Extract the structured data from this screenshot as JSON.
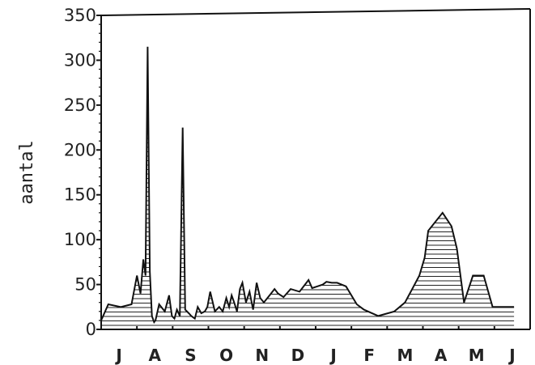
{
  "chart_data": {
    "type": "area",
    "title": "",
    "xlabel": "",
    "ylabel": "aantal",
    "ylim": [
      0,
      350
    ],
    "yticks": [
      0,
      50,
      100,
      150,
      200,
      250,
      300,
      350
    ],
    "x_unit": "month index (J=0 ... J=12)",
    "xlim": [
      0,
      12
    ],
    "months": [
      "J",
      "A",
      "S",
      "O",
      "N",
      "D",
      "J",
      "F",
      "M",
      "A",
      "M",
      "J"
    ],
    "grid": false,
    "legend": "none",
    "fill": "horizontal-hatch",
    "line_color": "#111111",
    "series": [
      {
        "x": [
          0.0,
          0.2,
          0.55,
          0.85,
          1.0,
          1.1,
          1.18,
          1.24,
          1.3,
          1.36,
          1.42,
          1.48,
          1.52,
          1.62,
          1.78,
          1.9,
          1.98,
          2.05,
          2.12,
          2.2,
          2.28,
          2.35,
          2.45,
          2.52,
          2.62,
          2.7,
          2.8,
          2.9,
          2.97,
          3.05,
          3.18,
          3.3,
          3.4,
          3.5,
          3.58,
          3.65,
          3.72,
          3.8,
          3.88,
          3.95,
          4.05,
          4.15,
          4.25,
          4.35,
          4.45,
          4.55,
          4.65,
          4.75,
          4.85,
          4.95,
          5.1,
          5.3,
          5.55,
          5.8,
          5.9,
          6.05,
          6.2,
          6.3,
          6.45,
          6.6,
          6.85,
          7.15,
          7.35,
          7.75,
          8.2,
          8.5,
          8.7,
          8.9,
          9.05,
          9.15,
          9.55,
          9.8,
          9.95,
          10.15,
          10.4,
          10.7,
          10.95,
          11.2,
          11.38,
          11.55
        ],
        "values": [
          10,
          28,
          25,
          28,
          60,
          40,
          78,
          60,
          315,
          65,
          15,
          8,
          10,
          28,
          20,
          38,
          15,
          12,
          22,
          15,
          225,
          22,
          18,
          15,
          12,
          25,
          18,
          20,
          25,
          42,
          20,
          25,
          20,
          35,
          25,
          38,
          30,
          20,
          45,
          52,
          30,
          42,
          22,
          52,
          35,
          30,
          35,
          40,
          45,
          40,
          36,
          45,
          42,
          55,
          46,
          48,
          50,
          53,
          52,
          52,
          48,
          28,
          22,
          15,
          20,
          30,
          45,
          60,
          80,
          110,
          130,
          115,
          90,
          30,
          60,
          60,
          25,
          25,
          25,
          25
        ]
      }
    ]
  }
}
